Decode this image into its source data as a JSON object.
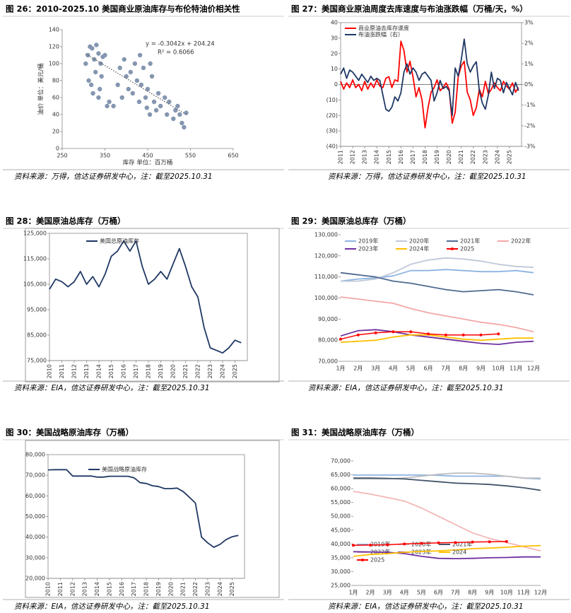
{
  "chart_data": [
    {
      "type": "scatter",
      "title": "图 26：2010-2025.10 美国商业原油库存与布伦特油价相关性",
      "source": "资料来源：万得，信达证券研发中心，注：截至2025.10.31",
      "xlabel": "库存 单位：百万桶",
      "ylabel": "油价 单位：美元/桶",
      "annotations": [
        "y = -0.3042x + 204.24",
        "R² = 0.6066"
      ],
      "trendline": {
        "slope": -0.3042,
        "intercept": 204.24
      },
      "color": "#8496b0",
      "xlim": [
        250,
        650
      ],
      "xticks": [
        250,
        350,
        450,
        550,
        650
      ],
      "ylim": [
        0,
        140
      ],
      "yticks": [
        0,
        20,
        40,
        60,
        80,
        100,
        120,
        140
      ],
      "x": [
        310,
        315,
        320,
        325,
        330,
        335,
        340,
        345,
        312,
        318,
        328,
        338,
        305,
        322,
        335,
        342,
        350,
        355,
        360,
        370,
        380,
        385,
        390,
        395,
        400,
        405,
        410,
        415,
        420,
        425,
        430,
        435,
        440,
        445,
        450,
        455,
        460,
        465,
        470,
        475,
        480,
        490,
        495,
        500,
        510,
        515,
        520,
        525,
        530,
        540,
        535,
        448,
        432,
        456
      ],
      "values": [
        110,
        120,
        118,
        105,
        122,
        112,
        100,
        108,
        80,
        75,
        90,
        70,
        100,
        65,
        60,
        85,
        110,
        50,
        55,
        50,
        75,
        95,
        60,
        105,
        85,
        70,
        90,
        65,
        100,
        80,
        55,
        75,
        95,
        60,
        70,
        40,
        85,
        55,
        45,
        65,
        50,
        60,
        40,
        55,
        35,
        45,
        50,
        40,
        30,
        42,
        25,
        48,
        110,
        100
      ]
    },
    {
      "type": "line",
      "title": "图 27：美国商业原油周度去库速度与布油涨跌幅（万桶/天，%）",
      "source": "资料来源：万得，信达证券研发中心，注：截至2025.10.31",
      "legend": "top-left",
      "xlim": [
        2011,
        2026
      ],
      "xticks": [
        2011,
        2012,
        2013,
        2014,
        2015,
        2016,
        2017,
        2018,
        2019,
        2020,
        2021,
        2022,
        2023,
        2024,
        2025
      ],
      "ylim": [
        -40,
        40
      ],
      "yticks": [
        {
          "value": -40,
          "label": "(40)"
        },
        {
          "value": -30,
          "label": "(30)"
        },
        {
          "value": -20,
          "label": "(20)"
        },
        {
          "value": -10,
          "label": "(10)"
        },
        0,
        10,
        20,
        30,
        40
      ],
      "y2lim": [
        -3,
        3
      ],
      "y2ticks": [
        {
          "value": -3,
          "label": "-3%"
        },
        {
          "value": -2,
          "label": "-2%"
        },
        {
          "value": -1,
          "label": "-1%"
        },
        {
          "value": 0,
          "label": "0%"
        },
        {
          "value": 1,
          "label": "1%"
        },
        {
          "value": 2,
          "label": "2%"
        },
        {
          "value": 3,
          "label": "3%"
        }
      ],
      "x": [
        2011,
        2011.25,
        2011.5,
        2011.75,
        2012,
        2012.25,
        2012.5,
        2012.75,
        2013,
        2013.25,
        2013.5,
        2013.75,
        2014,
        2014.25,
        2014.5,
        2014.75,
        2015,
        2015.25,
        2015.5,
        2015.75,
        2016,
        2016.25,
        2016.5,
        2016.75,
        2017,
        2017.25,
        2017.5,
        2017.75,
        2018,
        2018.25,
        2018.5,
        2018.75,
        2019,
        2019.25,
        2019.5,
        2019.75,
        2020,
        2020.25,
        2020.5,
        2020.75,
        2021,
        2021.25,
        2021.5,
        2021.75,
        2022,
        2022.25,
        2022.5,
        2022.75,
        2023,
        2023.25,
        2023.5,
        2023.75,
        2024,
        2024.25,
        2024.5,
        2024.75,
        2025,
        2025.25,
        2025.5,
        2025.75
      ],
      "series": [
        {
          "name": "商业原油去库存速度",
          "color": "#ff0000",
          "values": [
            2,
            -3,
            1,
            -2,
            3,
            -2,
            0,
            -4,
            2,
            -3,
            1,
            -2,
            3,
            -1,
            -2,
            4,
            5,
            -2,
            3,
            2,
            28,
            22,
            8,
            15,
            5,
            -8,
            -2,
            -10,
            -28,
            -15,
            -5,
            -2,
            3,
            -4,
            -2,
            1,
            -3,
            -25,
            -18,
            5,
            12,
            15,
            -5,
            -10,
            -20,
            -15,
            -3,
            -8,
            2,
            -6,
            -3,
            1,
            -2,
            -4,
            2,
            -1,
            -3,
            1,
            -5,
            -2
          ]
        },
        {
          "name": "布油涨跌幅（右）",
          "color": "#1f3864",
          "axis": "y2",
          "values": [
            0.5,
            0.8,
            0.3,
            0.7,
            0.6,
            0.4,
            0.2,
            0.5,
            0.3,
            0.1,
            0.4,
            0.2,
            0.3,
            0.2,
            -0.5,
            -1.2,
            -1.3,
            -1.1,
            -0.6,
            -0.8,
            -0.4,
            0.6,
            1.0,
            0.5,
            0.8,
            0.6,
            0.2,
            0.5,
            0.6,
            0.4,
            0.2,
            -0.8,
            -0.4,
            0.2,
            -0.2,
            -0.1,
            -0.3,
            -1.5,
            0.8,
            0.4,
            1.2,
            2.2,
            1.0,
            0.6,
            0.9,
            1.1,
            -0.3,
            -0.9,
            -1.2,
            -0.5,
            0.6,
            -0.2,
            0.3,
            0.2,
            -0.4,
            0.1,
            -0.2,
            -0.5,
            0.1,
            -0.3
          ]
        }
      ]
    },
    {
      "type": "line",
      "title": "图 28：美国原油总库存（万桶）",
      "source": "资料来源：EIA，信达证券研发中心，注：截至2025.10.31",
      "legend": "top-left",
      "xlim": [
        2010,
        2026
      ],
      "xticks": [
        2010,
        2011,
        2012,
        2013,
        2014,
        2015,
        2016,
        2017,
        2018,
        2019,
        2020,
        2021,
        2022,
        2023,
        2024,
        2025
      ],
      "ylim": [
        75000,
        125000
      ],
      "yticks": [
        {
          "value": 75000,
          "label": "75,000"
        },
        {
          "value": 85000,
          "label": "85,000"
        },
        {
          "value": 95000,
          "label": "95,000"
        },
        {
          "value": 105000,
          "label": "105,000"
        },
        {
          "value": 115000,
          "label": "115,000"
        },
        {
          "value": 125000,
          "label": "125,000"
        }
      ],
      "x": [
        2010,
        2010.5,
        2011,
        2011.5,
        2012,
        2012.5,
        2013,
        2013.5,
        2014,
        2014.5,
        2015,
        2015.5,
        2016,
        2016.5,
        2017,
        2017.5,
        2018,
        2018.5,
        2019,
        2019.5,
        2020,
        2020.5,
        2021,
        2021.5,
        2022,
        2022.5,
        2023,
        2023.5,
        2024,
        2024.5,
        2025,
        2025.5
      ],
      "series": [
        {
          "name": "美国总原油库存",
          "color": "#1f3864",
          "values": [
            103000,
            107000,
            106000,
            104000,
            106000,
            110000,
            105000,
            108000,
            104000,
            109000,
            116000,
            118000,
            122000,
            118000,
            122000,
            112000,
            105000,
            107000,
            110000,
            107000,
            113000,
            119000,
            112000,
            104000,
            100000,
            88000,
            80000,
            79000,
            78000,
            80000,
            83000,
            82000
          ]
        }
      ]
    },
    {
      "type": "line",
      "title": "图 29：美国原油总库存（万桶）",
      "source": "资料来源：EIA，信达证券研发中心，注：截至2025.10.31",
      "legend": "top-left",
      "categories": [
        "1月",
        "2月",
        "3月",
        "4月",
        "5月",
        "6月",
        "7月",
        "8月",
        "9月",
        "10月",
        "11月",
        "12月"
      ],
      "ylim": [
        70000,
        130000
      ],
      "yticks": [
        {
          "value": 70000,
          "label": "70,000"
        },
        {
          "value": 80000,
          "label": "80,000"
        },
        {
          "value": 90000,
          "label": "90,000"
        },
        {
          "value": 100000,
          "label": "100,000"
        },
        {
          "value": 110000,
          "label": "110,000"
        },
        {
          "value": 120000,
          "label": "120,000"
        },
        {
          "value": 130000,
          "label": "130,000"
        }
      ],
      "series": [
        {
          "name": "2019年",
          "color": "#8db4e2",
          "values": [
            108000,
            109000,
            109500,
            110500,
            113000,
            113000,
            113500,
            113000,
            112500,
            112500,
            113000,
            112000
          ]
        },
        {
          "name": "2020年",
          "color": "#c0c8d8",
          "values": [
            108000,
            108000,
            109000,
            112000,
            116000,
            118000,
            119000,
            118500,
            117500,
            116000,
            115000,
            114500
          ]
        },
        {
          "name": "2021年",
          "color": "#4f6a8f",
          "values": [
            112000,
            111000,
            110000,
            108000,
            107000,
            105500,
            104000,
            103000,
            103500,
            104000,
            103000,
            101500
          ]
        },
        {
          "name": "2022年",
          "color": "#f4a7a7",
          "values": [
            100500,
            99500,
            98500,
            97500,
            95000,
            93000,
            91500,
            90000,
            88500,
            87500,
            86000,
            84000
          ]
        },
        {
          "name": "2023年",
          "color": "#7030a0",
          "values": [
            82000,
            84500,
            85000,
            84000,
            82500,
            81500,
            80500,
            79500,
            78500,
            78000,
            79000,
            79500
          ]
        },
        {
          "name": "2024年",
          "color": "#ffc000",
          "values": [
            79000,
            79500,
            80000,
            81500,
            82500,
            82500,
            81500,
            80500,
            80000,
            80500,
            81000,
            81000
          ]
        },
        {
          "name": "2025",
          "color": "#ff0000",
          "markers": true,
          "values": [
            80500,
            82500,
            83500,
            84000,
            84000,
            83000,
            82500,
            82500,
            82500,
            83000,
            null,
            null
          ]
        }
      ]
    },
    {
      "type": "line",
      "title": "图 30：美国战略原油库存（万桶）",
      "source": "资料来源：EIA，信达证券研发中心，注：截至2025.10.31",
      "legend": "top-left",
      "xlim": [
        2010,
        2026
      ],
      "xticks": [
        2010,
        2011,
        2012,
        2013,
        2014,
        2015,
        2016,
        2017,
        2018,
        2019,
        2020,
        2021,
        2022,
        2023,
        2024,
        2025
      ],
      "ylim": [
        20000,
        80000
      ],
      "yticks": [
        {
          "value": 20000,
          "label": "20,000"
        },
        {
          "value": 30000,
          "label": "30,000"
        },
        {
          "value": 40000,
          "label": "40,000"
        },
        {
          "value": 50000,
          "label": "50,000"
        },
        {
          "value": 60000,
          "label": "60,000"
        },
        {
          "value": 70000,
          "label": "70,000"
        },
        {
          "value": 80000,
          "label": "80,000"
        }
      ],
      "x": [
        2010,
        2010.5,
        2011,
        2011.5,
        2012,
        2012.5,
        2013,
        2013.5,
        2014,
        2014.5,
        2015,
        2015.5,
        2016,
        2016.5,
        2017,
        2017.5,
        2018,
        2018.5,
        2019,
        2019.5,
        2020,
        2020.5,
        2021,
        2021.5,
        2022,
        2022.5,
        2023,
        2023.5,
        2024,
        2024.5,
        2025,
        2025.5
      ],
      "series": [
        {
          "name": "美国战略原油库存",
          "color": "#1f3864",
          "values": [
            72600,
            72700,
            72700,
            72700,
            69600,
            69600,
            69600,
            69600,
            69100,
            69100,
            69500,
            69500,
            69500,
            69500,
            68800,
            66400,
            66000,
            64900,
            64500,
            63500,
            63500,
            63800,
            62100,
            59400,
            56500,
            40000,
            37200,
            35100,
            36500,
            38800,
            40200,
            40800
          ]
        }
      ]
    },
    {
      "type": "line",
      "title": "图 31：美国战略原油库存（万桶）",
      "source": "资料来源：EIA，信达证券研发中心，注：截至2025.10.31",
      "legend": "bottom-left",
      "categories": [
        "1月",
        "2月",
        "3月",
        "4月",
        "5月",
        "6月",
        "7月",
        "8月",
        "9月",
        "10月",
        "11月",
        "12月"
      ],
      "ylim": [
        25000,
        70000
      ],
      "yticks": [
        {
          "value": 25000,
          "label": "25,000"
        },
        {
          "value": 30000,
          "label": "30,000"
        },
        {
          "value": 35000,
          "label": "35,000"
        },
        {
          "value": 40000,
          "label": "40,000"
        },
        {
          "value": 45000,
          "label": "45,000"
        },
        {
          "value": 50000,
          "label": "50,000"
        },
        {
          "value": 55000,
          "label": "55,000"
        },
        {
          "value": 60000,
          "label": "60,000"
        },
        {
          "value": 65000,
          "label": "65,000"
        },
        {
          "value": 70000,
          "label": "70,000"
        }
      ],
      "series": [
        {
          "name": "2019年",
          "color": "#8db4e2",
          "values": [
            64900,
            64900,
            64900,
            64900,
            64900,
            64800,
            64500,
            64500,
            64500,
            64500,
            63800,
            63500
          ]
        },
        {
          "name": "2020年",
          "color": "#bfbfbf",
          "values": [
            63500,
            63500,
            63500,
            63800,
            64500,
            65200,
            65600,
            65600,
            65200,
            64500,
            63800,
            63800
          ]
        },
        {
          "name": "2021年",
          "color": "#44546a",
          "values": [
            63800,
            63800,
            63700,
            63500,
            63000,
            62500,
            62000,
            61800,
            61500,
            61000,
            60300,
            59400
          ]
        },
        {
          "name": "2022年",
          "color": "#f4b6b6",
          "values": [
            59000,
            58000,
            56800,
            55500,
            53000,
            50000,
            47000,
            44000,
            42000,
            40500,
            39000,
            37500
          ]
        },
        {
          "name": "2023年",
          "color": "#7030a0",
          "values": [
            37200,
            37100,
            37000,
            36500,
            35500,
            34800,
            34700,
            34800,
            35000,
            35100,
            35300,
            35300
          ]
        },
        {
          "name": "2024",
          "color": "#ffc000",
          "values": [
            35500,
            36200,
            36500,
            37000,
            37300,
            37500,
            37800,
            38300,
            38500,
            38800,
            39200,
            39400
          ]
        },
        {
          "name": "2025",
          "color": "#ff0000",
          "markers": true,
          "values": [
            39500,
            39600,
            39700,
            40000,
            40200,
            40400,
            40500,
            40700,
            40800,
            40900,
            null,
            null
          ]
        }
      ]
    }
  ]
}
